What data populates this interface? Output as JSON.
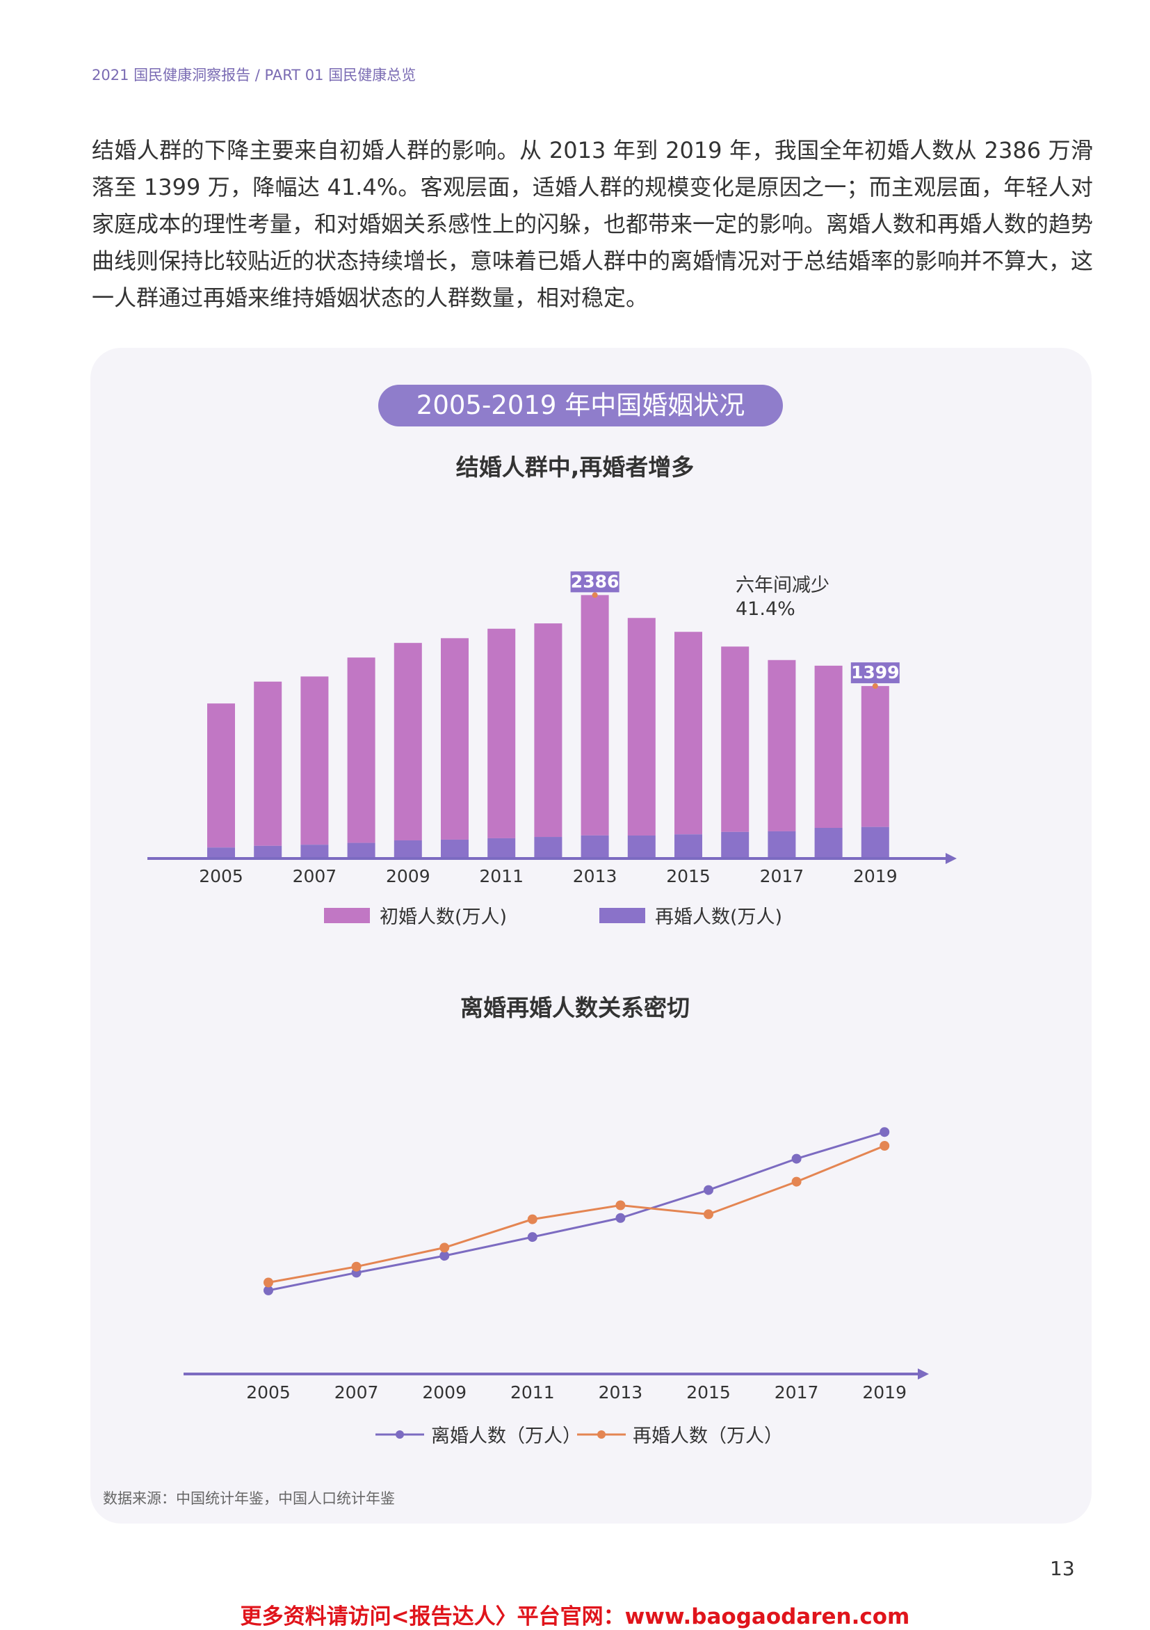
{
  "header": {
    "breadcrumb": "2021 国民健康洞察报告 / PART 01 国民健康总览"
  },
  "intro": {
    "paragraph": "结婚人群的下降主要来自初婚人群的影响。从 2013 年到 2019 年，我国全年初婚人数从 2386 万滑落至 1399 万，降幅达 41.4%。客观层面，适婚人群的规模变化是原因之一；而主观层面，年轻人对家庭成本的理性考量，和对婚姻关系感性上的闪躲，也都带来一定的影响。离婚人数和再婚人数的趋势曲线则保持比较贴近的状态持续增长，意味着已婚人群中的离婚情况对于总结婚率的影响并不算大，这一人群通过再婚来维持婚姻状态的人群数量，相对稳定。"
  },
  "panel": {
    "title": "2005-2019 年中国婚姻状况"
  },
  "colors": {
    "first_marriage": "#c177c4",
    "remarriage": "#8a72c9",
    "divorce_line": "#7c6bc1",
    "remarriage_line": "#e48552",
    "axis": "#7c6bc1"
  },
  "chart_data": [
    {
      "type": "bar",
      "stacked": true,
      "title": "结婚人群中,再婚者增多",
      "categories": [
        "2005",
        "2006",
        "2007",
        "2008",
        "2009",
        "2010",
        "2011",
        "2012",
        "2013",
        "2014",
        "2015",
        "2016",
        "2017",
        "2018",
        "2019"
      ],
      "xtick_labels": [
        "2005",
        "2007",
        "2009",
        "2011",
        "2013",
        "2015",
        "2017",
        "2019"
      ],
      "series": [
        {
          "name": "再婚人数(万人)",
          "values": [
            95,
            112,
            123,
            141,
            166,
            173,
            187,
            200,
            215,
            214,
            226,
            250,
            256,
            290,
            299
          ]
        },
        {
          "name": "初婚人数(万人)",
          "values": [
            1430,
            1630,
            1670,
            1840,
            1960,
            2000,
            2080,
            2120,
            2386,
            2160,
            2010,
            1840,
            1700,
            1610,
            1399
          ]
        }
      ],
      "data_labels": [
        {
          "category": "2013",
          "text": "2386"
        },
        {
          "category": "2019",
          "text": "1399"
        }
      ],
      "annotation": {
        "line1": "六年间减少",
        "line2": "41.4%"
      },
      "legend": "bottom"
    },
    {
      "type": "line",
      "title": "离婚再婚人数关系密切",
      "categories": [
        "2005",
        "2007",
        "2009",
        "2011",
        "2013",
        "2015",
        "2017",
        "2019"
      ],
      "series": [
        {
          "name": "离婚人数（万人）",
          "values": [
            357,
            442,
            523,
            613,
            704,
            838,
            988,
            1116
          ]
        },
        {
          "name": "再婚人数（万人）",
          "values": [
            395,
            471,
            562,
            698,
            765,
            722,
            878,
            1050
          ]
        }
      ],
      "legend": "bottom"
    }
  ],
  "source": "数据来源：中国统计年鉴，中国人口统计年鉴",
  "page_number": "13",
  "footer": "更多资料请访问<报告达人〉平台官网：www.baogaodaren.com"
}
